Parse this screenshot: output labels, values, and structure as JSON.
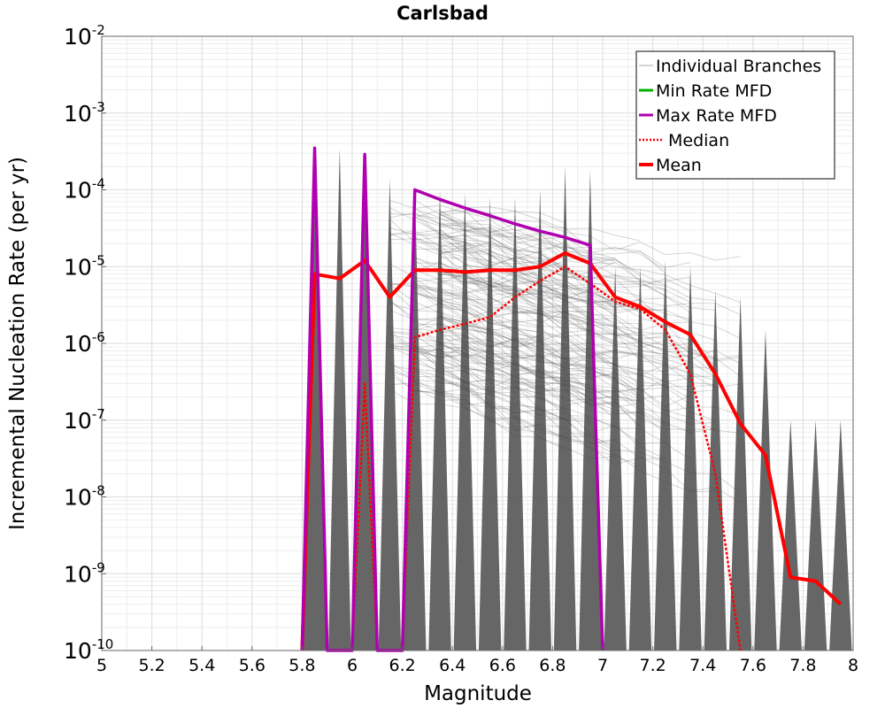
{
  "chart_data": {
    "type": "line",
    "title": "Carlsbad",
    "xlabel": "Magnitude",
    "ylabel": "Incremental Nucleation Rate (per yr)",
    "xlim": [
      5,
      8
    ],
    "ylim": [
      1e-10,
      0.01
    ],
    "yscale": "log",
    "grid": true,
    "legend_position": "top-right",
    "x_ticks": [
      "5",
      "5.2",
      "5.4",
      "5.6",
      "5.8",
      "6",
      "6.2",
      "6.4",
      "6.6",
      "6.8",
      "7",
      "7.2",
      "7.4",
      "7.6",
      "7.8",
      "8"
    ],
    "y_ticks": [
      {
        "base": "10",
        "exp": "-10",
        "value": 1e-10
      },
      {
        "base": "10",
        "exp": "-9",
        "value": 1e-09
      },
      {
        "base": "10",
        "exp": "-8",
        "value": 1e-08
      },
      {
        "base": "10",
        "exp": "-7",
        "value": 1e-07
      },
      {
        "base": "10",
        "exp": "-6",
        "value": 1e-06
      },
      {
        "base": "10",
        "exp": "-5",
        "value": 1e-05
      },
      {
        "base": "10",
        "exp": "-4",
        "value": 0.0001
      },
      {
        "base": "10",
        "exp": "-3",
        "value": 0.001
      },
      {
        "base": "10",
        "exp": "-2",
        "value": 0.01
      }
    ],
    "legend": [
      {
        "label": "Individual Branches",
        "color": "#b0b0b0",
        "style": "thin"
      },
      {
        "label": "Min Rate MFD",
        "color": "#00b000",
        "style": "solid"
      },
      {
        "label": "Max Rate MFD",
        "color": "#b000b0",
        "style": "solid"
      },
      {
        "label": "Median",
        "color": "#ff0000",
        "style": "dotted"
      },
      {
        "label": "Mean",
        "color": "#ff0000",
        "style": "thick"
      }
    ],
    "series": [
      {
        "name": "Mean",
        "color": "#ff0000",
        "x": [
          5.85,
          5.95,
          6.05,
          6.15,
          6.25,
          6.35,
          6.45,
          6.55,
          6.65,
          6.75,
          6.85,
          6.95,
          7.05,
          7.15,
          7.25,
          7.35,
          7.45,
          7.55,
          7.65,
          7.75,
          7.85,
          7.95
        ],
        "y": [
          8e-06,
          7e-06,
          1.2e-05,
          4e-06,
          9e-06,
          9e-06,
          8.5e-06,
          9e-06,
          9e-06,
          1e-05,
          1.5e-05,
          1.1e-05,
          4e-06,
          3e-06,
          1.9e-06,
          1.3e-06,
          4e-07,
          9e-08,
          3.5e-08,
          9e-10,
          8e-10,
          4e-10
        ]
      },
      {
        "name": "Median",
        "color": "#ff0000",
        "x": [
          6.05,
          6.25,
          6.35,
          6.45,
          6.55,
          6.65,
          6.75,
          6.85,
          6.95,
          7.05,
          7.15,
          7.25,
          7.35,
          7.45,
          7.55
        ],
        "y": [
          3e-07,
          1.2e-06,
          1.5e-06,
          1.8e-06,
          2.2e-06,
          4e-06,
          6.5e-06,
          1e-05,
          6e-06,
          3.5e-06,
          2.8e-06,
          1.5e-06,
          4e-07,
          2e-08,
          1e-10
        ]
      },
      {
        "name": "Max Rate MFD",
        "color": "#b000b0",
        "x": [
          5.85,
          6.05,
          6.25,
          6.35,
          6.45,
          6.55,
          6.65,
          6.75,
          6.85,
          6.95
        ],
        "y": [
          0.00035,
          0.00029,
          0.0001,
          7.5e-05,
          5.8e-05,
          4.6e-05,
          3.6e-05,
          2.9e-05,
          2.4e-05,
          1.9e-05
        ]
      },
      {
        "name": "Min Rate MFD",
        "color": "#00b000",
        "x": [],
        "y": []
      }
    ]
  }
}
